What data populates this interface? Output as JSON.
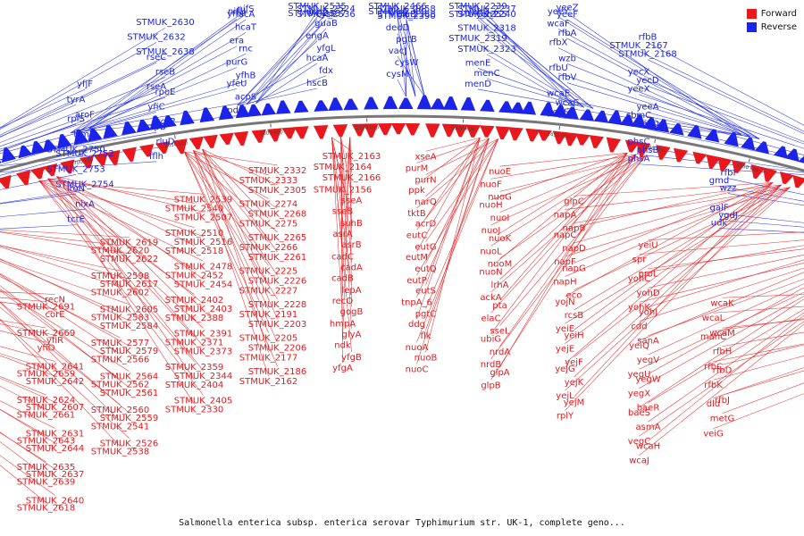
{
  "caption": "Salmonella enterica subsp. enterica serovar Typhimurium str. UK-1, complete geno...",
  "legend": [
    {
      "label": "Forward",
      "color": "#e8181c"
    },
    {
      "label": "Reverse",
      "color": "#1b24e8"
    }
  ],
  "colors": {
    "forward": "#e8181c",
    "reverse": "#1b24e8",
    "backbone": "#777777"
  },
  "scale_ticks": [
    "2900 kbp",
    "2850 kbp",
    "2800 kbp",
    "2750 kbp",
    "2700 kbp",
    "2650 kbp",
    "2600 kbp",
    "2550 kbp",
    "2500 kbp",
    "2450 kbp",
    "2400 kbp",
    "2350 kbp",
    "2300 kbp",
    "2250 kbp",
    "2200 kbp",
    "2150 kbp"
  ],
  "outer_labels": [
    "tctE",
    "nixA",
    "iroN",
    "STMUK_2754",
    "STMUK_2753",
    "STMUK_2752",
    "STMUK_2750",
    "trmD",
    "rplS",
    "aroF",
    "tyrA",
    "yfjF",
    "fflh",
    "rluD",
    "clpB",
    "kgtP",
    "yfiC",
    "rpoE",
    "rseA",
    "rseB",
    "rseC",
    "STMUK_2638",
    "STMUK_2632",
    "STMUK_2630",
    "pdxJ",
    "acpS",
    "yfeU",
    "yfhB",
    "purG",
    "rnc",
    "era",
    "hcaT",
    "yfhP",
    "nifS",
    "nifU",
    "iscA",
    "hscB",
    "fdx",
    "hcaA",
    "yfgL",
    "engA",
    "guaB",
    "STMUK_2537",
    "STMUK_2536",
    "STMUK_2535",
    "STMUK_2524",
    "ucpA",
    "cysP",
    "cysM",
    "cysW",
    "vacJ",
    "pgtB",
    "dedD",
    "STMUK_2390",
    "STMUK_2389",
    "STMUK_2388",
    "STMUK_2466",
    "STMUK_2458",
    "elaA",
    "elaB",
    "menD",
    "menC",
    "menE",
    "STMUK_2323",
    "STMUK_2319",
    "STMUK_2318",
    "STMUK_2255",
    "STMUK_2240",
    "STMUK_2239",
    "STMUK_2237",
    "yehU",
    "yehT",
    "yehS",
    "wcaC",
    "wcaE",
    "rfbV",
    "rfbU",
    "wzb",
    "rfbX",
    "rfbA",
    "wcaF",
    "yeeZ",
    "yeeY",
    "yeeF",
    "phsA",
    "phsB",
    "phsC",
    "dacD",
    "sbmC",
    "yeeA",
    "yeeX",
    "yecD",
    "yecX",
    "STMUK_2168",
    "STMUK_2167",
    "rfbB",
    "udk",
    "ygdJ",
    "galF",
    "wzz",
    "gmd",
    "rfbI"
  ],
  "inner_labels": [
    "recN",
    "STMUK_2691",
    "corE",
    "STMUK_2669",
    "yfiR",
    "yfiO",
    "STMUK_2641",
    "STMUK_2659",
    "STMUK_2642",
    "STMUK_2624",
    "STMUK_2607",
    "STMUK_2661",
    "STMUK_2631",
    "STMUK_2643",
    "STMUK_2644",
    "STMUK_2635",
    "STMUK_2637",
    "STMUK_2639",
    "STMUK_2640",
    "STMUK_2618",
    "STMUK_2619",
    "STMUK_2620",
    "STMUK_2622",
    "STMUK_2598",
    "STMUK_2617",
    "STMUK_2602",
    "STMUK_2605",
    "STMUK_2583",
    "STMUK_2584",
    "STMUK_2577",
    "STMUK_2579",
    "STMUK_2566",
    "STMUK_2564",
    "STMUK_2562",
    "STMUK_2561",
    "STMUK_2560",
    "STMUK_2559",
    "STMUK_2541",
    "STMUK_2526",
    "STMUK_2538",
    "STMUK_2539",
    "STMUK_2540",
    "STMUK_2507",
    "STMUK_2510",
    "STMUK_2516",
    "STMUK_2518",
    "STMUK_2478",
    "STMUK_2452",
    "STMUK_2454",
    "STMUK_2402",
    "STMUK_2403",
    "STMUK_2388",
    "STMUK_2391",
    "STMUK_2371",
    "STMUK_2373",
    "STMUK_2359",
    "STMUK_2344",
    "STMUK_2404",
    "STMUK_2405",
    "STMUK_2330",
    "STMUK_2332",
    "STMUK_2333",
    "STMUK_2305",
    "STMUK_2274",
    "STMUK_2268",
    "STMUK_2275",
    "STMUK_2265",
    "STMUK_2266",
    "STMUK_2261",
    "STMUK_2225",
    "STMUK_2226",
    "STMUK_2227",
    "STMUK_2228",
    "STMUK_2191",
    "STMUK_2203",
    "STMUK_2205",
    "STMUK_2206",
    "STMUK_2177",
    "STMUK_2186",
    "STMUK_2162",
    "STMUK_2163",
    "STMUK_2164",
    "STMUK_2166",
    "STMUK_2156",
    "sseA",
    "sseB",
    "suhB",
    "asrA",
    "asrB",
    "cadC",
    "cadA",
    "cadB",
    "lepA",
    "recO",
    "gogB",
    "hmpA",
    "glyA",
    "ndk",
    "yfgB",
    "yfgA",
    "xseA",
    "purM",
    "purN",
    "ppk",
    "narQ",
    "tktB",
    "acrD",
    "eutC",
    "eutG",
    "eutM",
    "eutQ",
    "eutP",
    "eutS",
    "tnpA_6",
    "pgtC",
    "ddg",
    "flk",
    "nuoA",
    "nuoB",
    "nuoC",
    "nuoE",
    "nuoF",
    "nuoG",
    "nuoH",
    "nuoI",
    "nuoJ",
    "nuoK",
    "nuoL",
    "nuoM",
    "nuoN",
    "lrhA",
    "ackA",
    "pta",
    "elaC",
    "sseL",
    "ubiG",
    "nrdA",
    "nrdB",
    "glpA",
    "glpB",
    "glpC",
    "napA",
    "napB",
    "napC",
    "napD",
    "napF",
    "napG",
    "napH",
    "eco",
    "yojN",
    "rcsB",
    "yeiE",
    "yeiH",
    "yejE",
    "yejF",
    "yejG",
    "yejK",
    "yejL",
    "yejM",
    "rplY",
    "yeiU",
    "spr",
    "proL",
    "yohC",
    "yohD",
    "yohK",
    "yohJ",
    "cdd",
    "sanA",
    "yeiQ",
    "yegV",
    "yegU",
    "yegW",
    "yegX",
    "baeR",
    "baeS",
    "asmA",
    "vegC",
    "wcaH",
    "wcaJ",
    "wcaK",
    "wcaL",
    "wcaM",
    "manC",
    "rfbH",
    "rfbC",
    "rfbD",
    "rfbK",
    "rfbJ",
    "dld",
    "metG",
    "veiG"
  ]
}
